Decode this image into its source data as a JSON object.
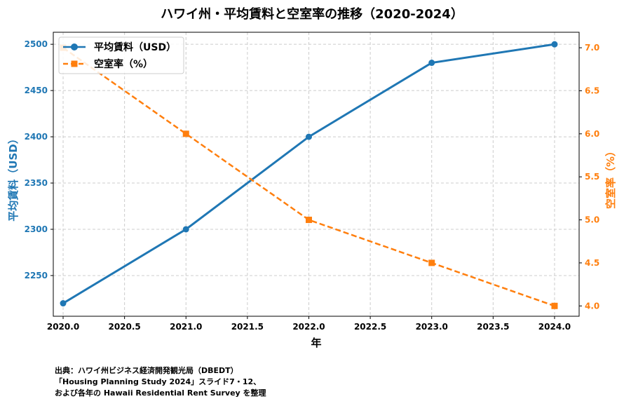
{
  "colors": {
    "left": "#1f77b4",
    "right": "#ff7f0e",
    "grid": "#cccccc"
  },
  "chart_data": {
    "type": "line",
    "title": "ハワイ州・平均賃料と空室率の推移（2020-2024）",
    "xlabel": "年",
    "ylabel_left": "平均賃料（USD）",
    "ylabel_right": "空室率（%）",
    "x": [
      2020,
      2021,
      2022,
      2023,
      2024
    ],
    "x_ticks": [
      "2020.0",
      "2020.5",
      "2021.0",
      "2021.5",
      "2022.0",
      "2022.5",
      "2023.0",
      "2023.5",
      "2024.0"
    ],
    "y_left_ticks": [
      "2250",
      "2300",
      "2350",
      "2400",
      "2450",
      "2500"
    ],
    "y_right_ticks": [
      "4.0",
      "4.5",
      "5.0",
      "5.5",
      "6.0",
      "6.5",
      "7.0"
    ],
    "xlim": [
      2019.92,
      2024.2
    ],
    "ylim_left": [
      2206,
      2513
    ],
    "ylim_right": [
      3.88,
      7.18
    ],
    "series": [
      {
        "name": "平均賃料（USD）",
        "axis": "left",
        "style": "solid",
        "marker": "circle",
        "values": [
          2220,
          2300,
          2400,
          2480,
          2500
        ]
      },
      {
        "name": "空室率（%）",
        "axis": "right",
        "style": "dashed",
        "marker": "square",
        "values": [
          7.0,
          6.0,
          5.0,
          4.5,
          4.0
        ]
      }
    ],
    "grid": true,
    "legend_position": "top-left"
  },
  "source_lines": [
    "出典：ハワイ州ビジネス経済開発観光局（DBEDT）",
    "「Housing Planning Study 2024」スライド7・12、",
    "および各年の Hawaii Residential Rent Survey を整理"
  ]
}
